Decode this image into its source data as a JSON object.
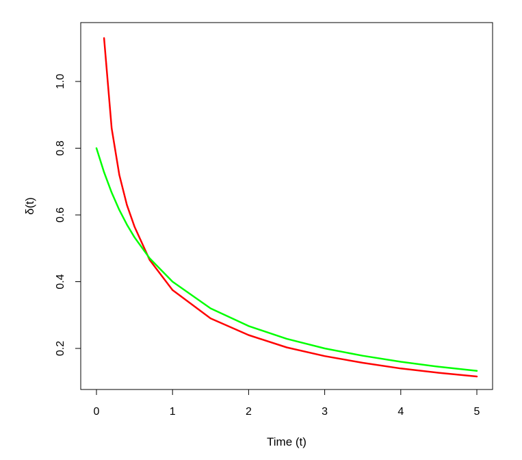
{
  "chart_data": {
    "type": "line",
    "title": "",
    "xlabel": "Time (t)",
    "ylabel": "δ(t)",
    "xlim": [
      0,
      5
    ],
    "ylim": [
      0.2,
      1.0
    ],
    "x_ticks": [
      0,
      1,
      2,
      3,
      4,
      5
    ],
    "y_ticks": [
      0.2,
      0.4,
      0.6,
      0.8,
      1.0
    ],
    "x_tick_labels": [
      "0",
      "1",
      "2",
      "3",
      "4",
      "5"
    ],
    "y_tick_labels": [
      "0.2",
      "0.4",
      "0.6",
      "0.8",
      "1.0"
    ],
    "grid": false,
    "legend": "none",
    "series": [
      {
        "color": "#ff0000",
        "x": [
          0.1,
          0.2,
          0.3,
          0.4,
          0.5,
          0.7,
          1.0,
          1.5,
          2.0,
          2.5,
          3.0,
          3.5,
          4.0,
          4.5,
          5.0
        ],
        "y": [
          1.13,
          0.86,
          0.72,
          0.63,
          0.565,
          0.465,
          0.375,
          0.29,
          0.24,
          0.203,
          0.177,
          0.157,
          0.14,
          0.127,
          0.116
        ]
      },
      {
        "color": "#00ff00",
        "x": [
          0.0,
          0.1,
          0.2,
          0.3,
          0.4,
          0.5,
          0.7,
          1.0,
          1.5,
          2.0,
          2.5,
          3.0,
          3.5,
          4.0,
          4.5,
          5.0
        ],
        "y": [
          0.8,
          0.728,
          0.667,
          0.615,
          0.571,
          0.533,
          0.47,
          0.4,
          0.32,
          0.267,
          0.229,
          0.2,
          0.178,
          0.16,
          0.145,
          0.133
        ]
      }
    ]
  }
}
